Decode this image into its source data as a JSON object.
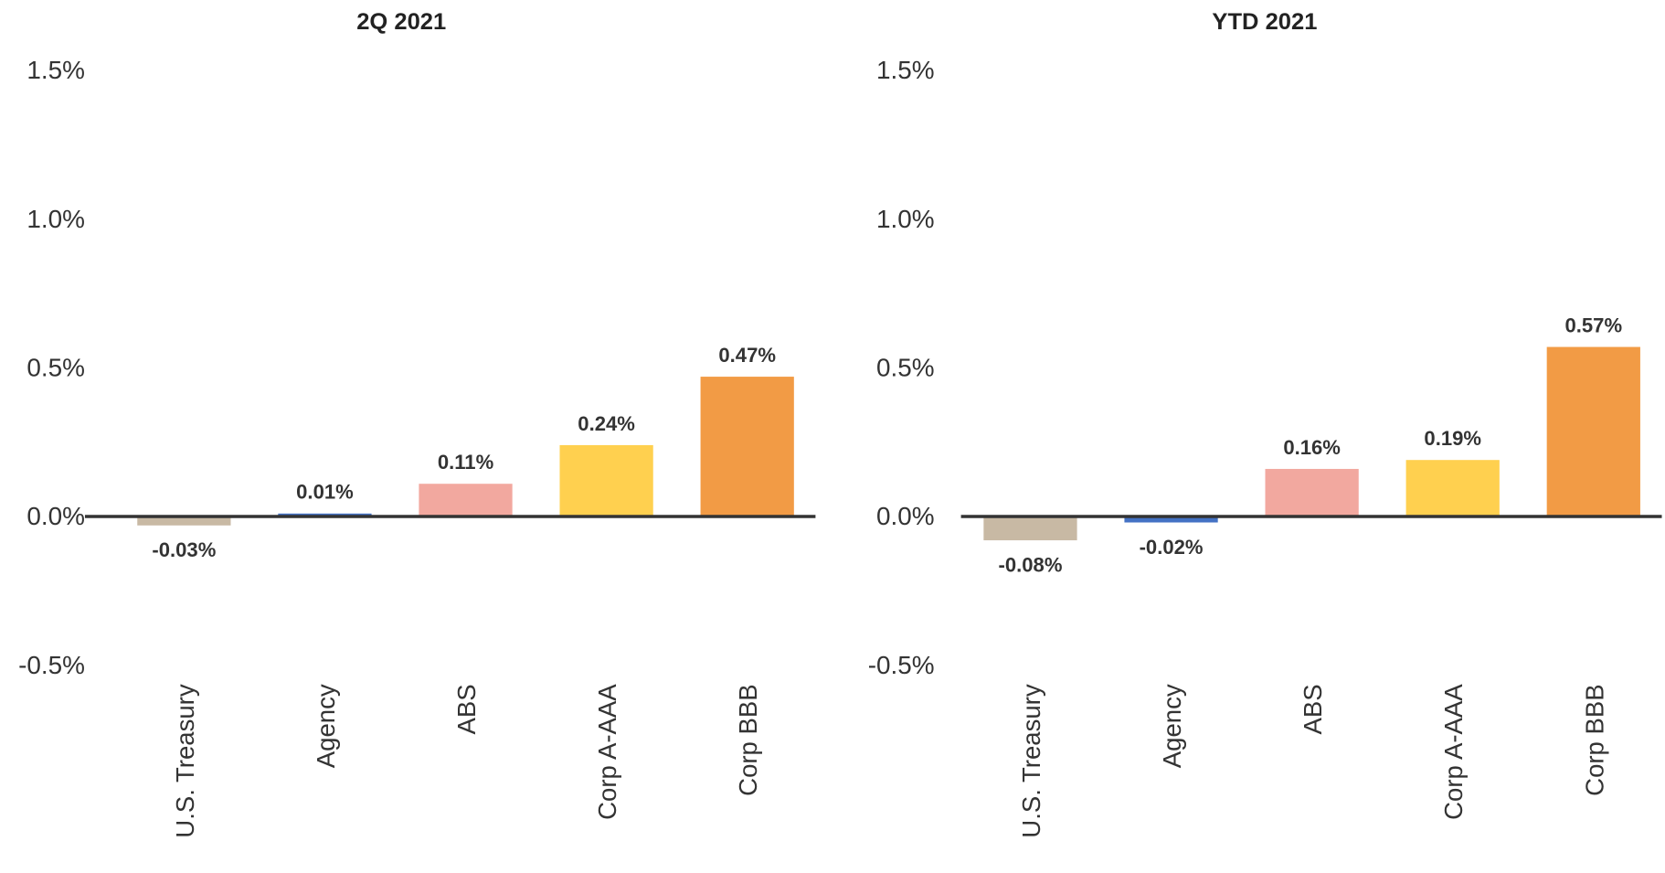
{
  "chart_data": [
    {
      "type": "bar",
      "title": "2Q 2021",
      "categories": [
        "U.S. Treasury",
        "Agency",
        "ABS",
        "Corp A-AAA",
        "Corp BBB"
      ],
      "values": [
        -0.03,
        0.01,
        0.11,
        0.24,
        0.47
      ],
      "value_labels": [
        "-0.03%",
        "0.01%",
        "0.11%",
        "0.24%",
        "0.47%"
      ],
      "colors": [
        "#c8b9a4",
        "#4472c4",
        "#f2a89f",
        "#ffd04f",
        "#f29b45"
      ],
      "ylim": [
        -0.5,
        1.5
      ],
      "yticks": [
        {
          "value": -0.5,
          "label": "-0.5%"
        },
        {
          "value": 0.0,
          "label": "0.0%"
        },
        {
          "value": 0.5,
          "label": "0.5%"
        },
        {
          "value": 1.0,
          "label": "1.0%"
        },
        {
          "value": 1.5,
          "label": "1.5%"
        }
      ],
      "grid": false
    },
    {
      "type": "bar",
      "title": "YTD 2021",
      "categories": [
        "U.S. Treasury",
        "Agency",
        "ABS",
        "Corp A-AAA",
        "Corp BBB"
      ],
      "values": [
        -0.08,
        -0.02,
        0.16,
        0.19,
        0.57
      ],
      "value_labels": [
        "-0.08%",
        "-0.02%",
        "0.16%",
        "0.19%",
        "0.57%"
      ],
      "colors": [
        "#c8b9a4",
        "#4472c4",
        "#f2a89f",
        "#ffd04f",
        "#f29b45"
      ],
      "ylim": [
        -0.5,
        1.5
      ],
      "yticks": [
        {
          "value": -0.5,
          "label": "-0.5%"
        },
        {
          "value": 0.0,
          "label": "0.0%"
        },
        {
          "value": 0.5,
          "label": "0.5%"
        },
        {
          "value": 1.0,
          "label": "1.0%"
        },
        {
          "value": 1.5,
          "label": "1.5%"
        }
      ],
      "grid": false
    }
  ]
}
